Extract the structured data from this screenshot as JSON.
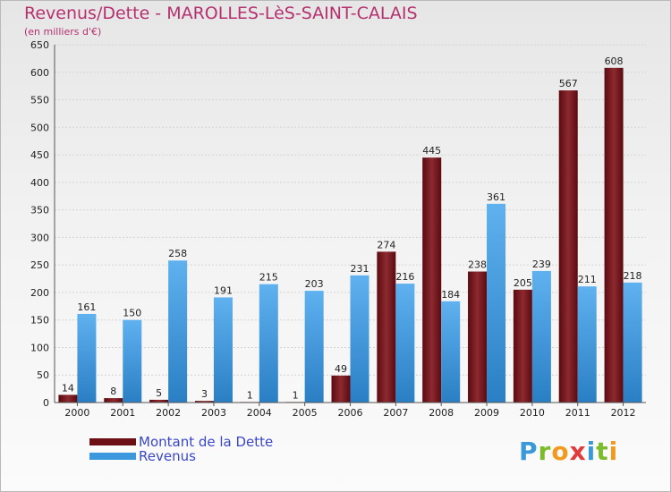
{
  "header": {
    "title": "Revenus/Dette - MAROLLES-LèS-SAINT-CALAIS",
    "subtitle": "(en milliers d'€)"
  },
  "legend": [
    {
      "label": "Montant de la Dette",
      "color": "#6d0f17"
    },
    {
      "label": "Revenus",
      "color": "#3d98dd"
    }
  ],
  "logo": {
    "text": "Proxiti",
    "letters": [
      {
        "ch": "P",
        "color": "#3a9ad9"
      },
      {
        "ch": "r",
        "color": "#7cbc2b"
      },
      {
        "ch": "o",
        "color": "#f29a1d"
      },
      {
        "ch": "x",
        "color": "#e23b3b"
      },
      {
        "ch": "i",
        "color": "#3a9ad9"
      },
      {
        "ch": "t",
        "color": "#7cbc2b"
      },
      {
        "ch": "i",
        "color": "#f29a1d"
      }
    ]
  },
  "chart_data": {
    "type": "bar",
    "title": "Revenus/Dette - MAROLLES-LèS-SAINT-CALAIS",
    "subtitle": "(en milliers d'€)",
    "xlabel": "",
    "ylabel": "",
    "categories": [
      "2000",
      "2001",
      "2002",
      "2003",
      "2004",
      "2005",
      "2006",
      "2007",
      "2008",
      "2009",
      "2010",
      "2011",
      "2012"
    ],
    "series": [
      {
        "name": "Montant de la Dette",
        "color": "#6d0f17",
        "values": [
          14,
          8,
          5,
          3,
          1,
          1,
          49,
          274,
          445,
          238,
          205,
          567,
          608
        ]
      },
      {
        "name": "Revenus",
        "color": "#3d98dd",
        "values": [
          161,
          150,
          258,
          191,
          215,
          203,
          231,
          216,
          184,
          361,
          239,
          211,
          218
        ]
      }
    ],
    "ylim": [
      0,
      650
    ],
    "yticks": [
      0,
      50,
      100,
      150,
      200,
      250,
      300,
      350,
      400,
      450,
      500,
      550,
      600,
      650
    ],
    "grid": true,
    "legend_position": "bottom-left"
  }
}
